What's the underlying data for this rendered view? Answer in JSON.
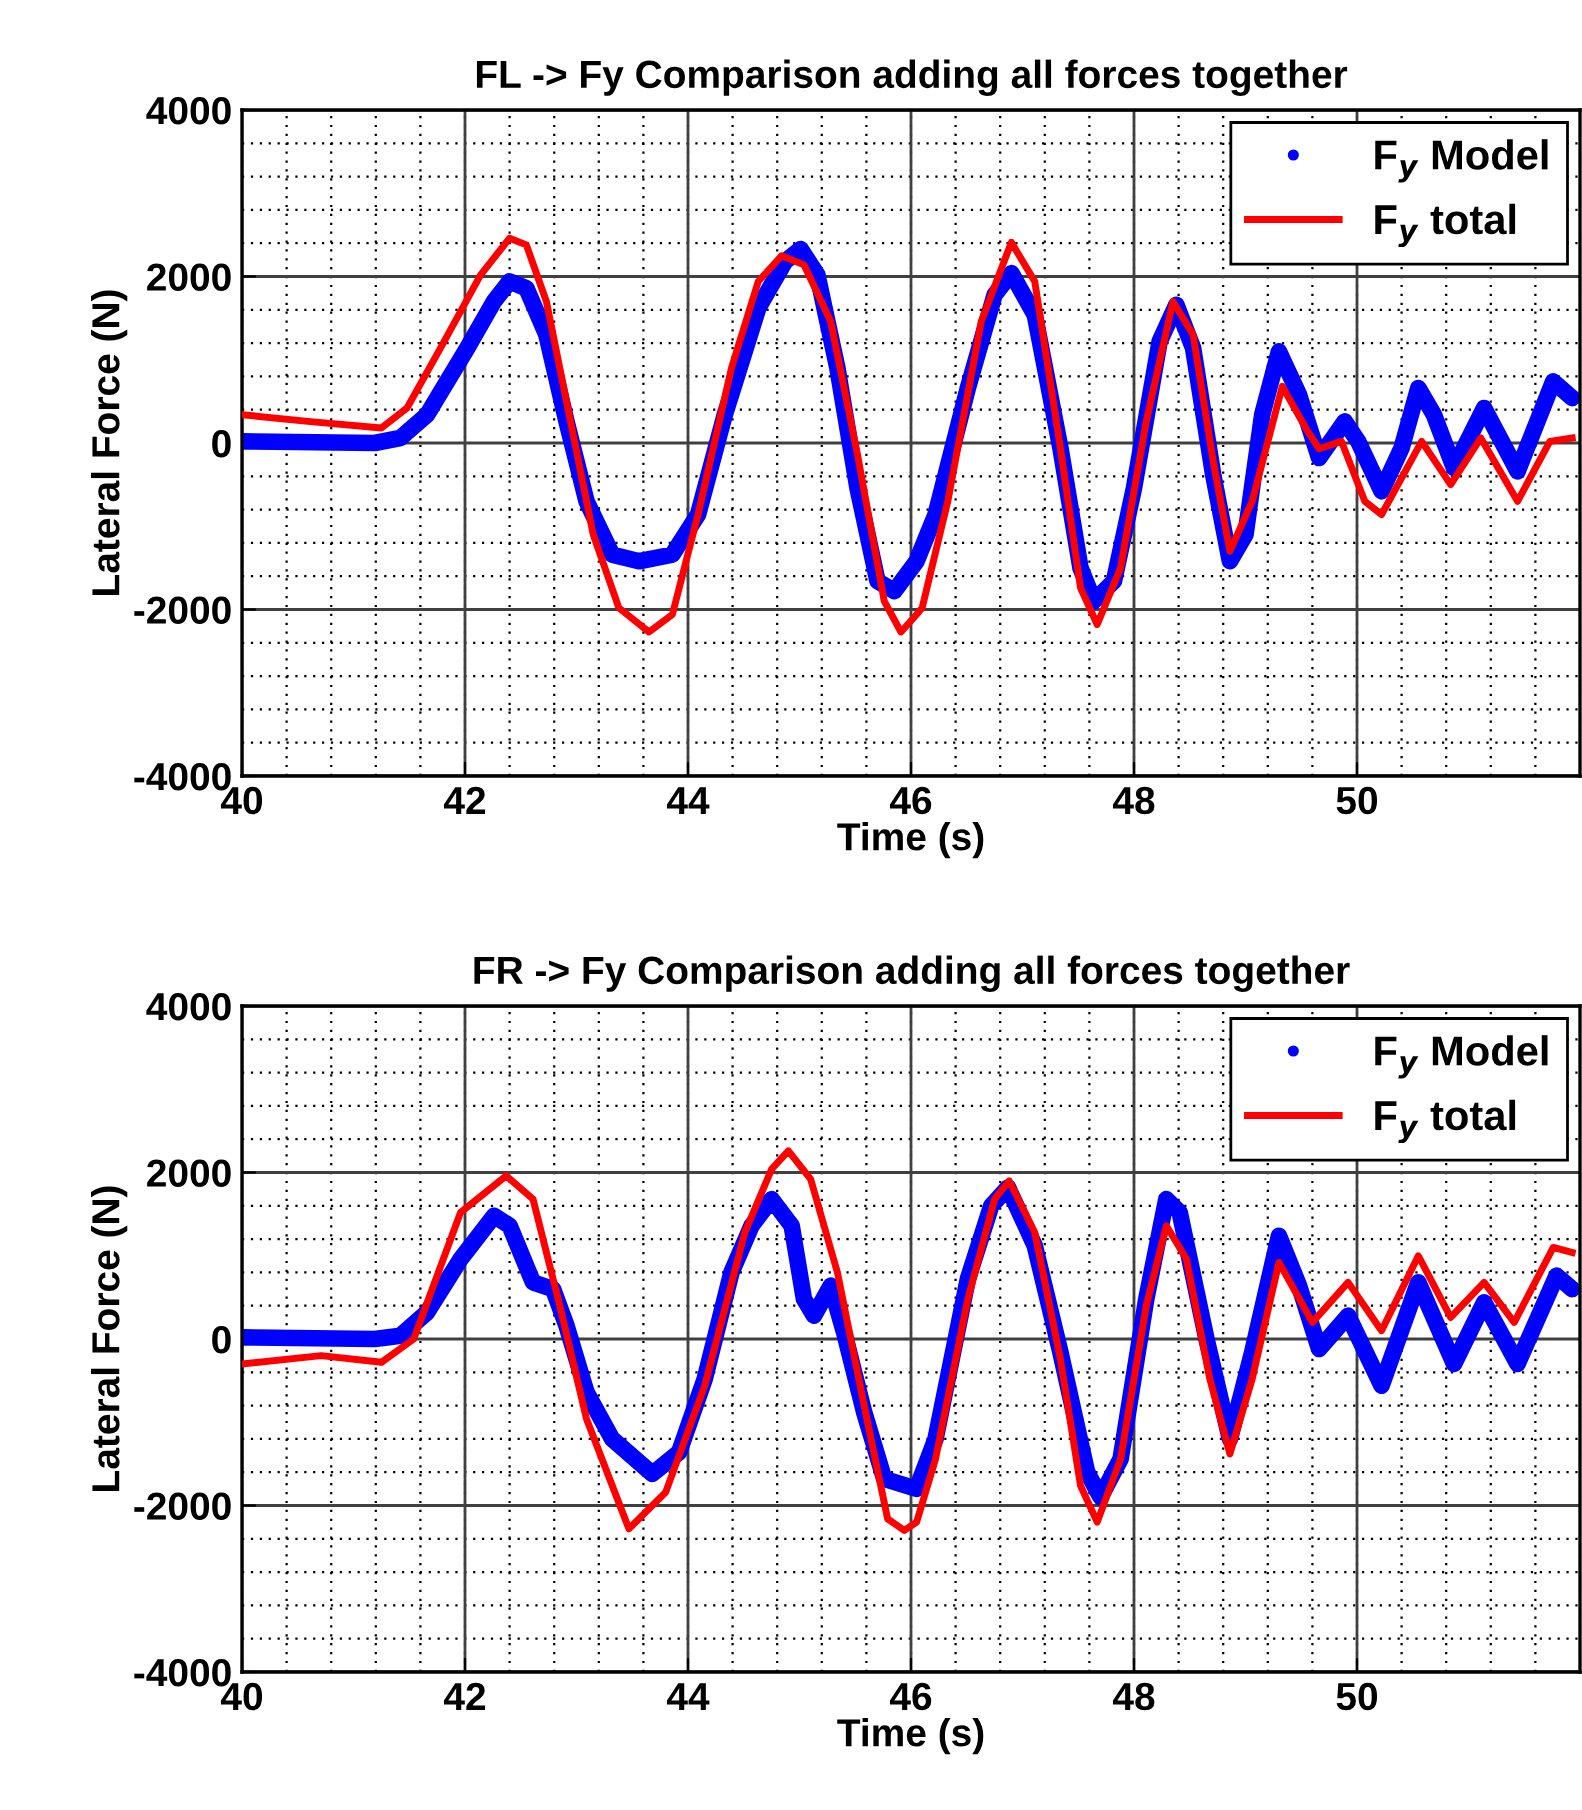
{
  "chart_data": [
    {
      "type": "line",
      "title": "FL -> Fy Comparison adding all forces together",
      "xlabel": "Time (s)",
      "ylabel": "Lateral Force (N)",
      "xlim": [
        40,
        52
      ],
      "xticks": [
        40,
        42,
        44,
        46,
        48,
        50
      ],
      "ylim": [
        -4000,
        4000
      ],
      "yticks": [
        -4000,
        -2000,
        0,
        2000,
        4000
      ],
      "grid": true,
      "legend": "top right",
      "series": [
        {
          "name": "F$_{y}$ Model",
          "color": "#0000ff",
          "marker": "circle",
          "x": [
            40,
            41.19,
            41.42,
            41.66,
            42.02,
            42.26,
            42.4,
            42.55,
            42.73,
            42.91,
            43.09,
            43.32,
            43.56,
            43.86,
            44.09,
            44.33,
            44.63,
            44.87,
            45.01,
            45.16,
            45.34,
            45.52,
            45.7,
            45.85,
            46.05,
            46.22,
            46.51,
            46.75,
            46.9,
            47.11,
            47.34,
            47.52,
            47.64,
            47.82,
            48.0,
            48.23,
            48.38,
            48.53,
            48.71,
            48.86,
            49.0,
            49.15,
            49.3,
            49.48,
            49.66,
            49.89,
            50.01,
            50.22,
            50.4,
            50.55,
            50.69,
            50.87,
            51.14,
            51.44,
            51.76,
            51.93
          ],
          "values": [
            20,
            0,
            60,
            340,
            1140,
            1700,
            1940,
            1860,
            1300,
            260,
            -700,
            -1340,
            -1420,
            -1340,
            -860,
            340,
            1620,
            2180,
            2330,
            2020,
            900,
            -540,
            -1660,
            -1780,
            -1420,
            -860,
            660,
            1780,
            2040,
            1540,
            -60,
            -1500,
            -1900,
            -1660,
            -540,
            1220,
            1660,
            1140,
            -380,
            -1420,
            -1100,
            340,
            1100,
            580,
            -180,
            260,
            20,
            -580,
            -60,
            660,
            340,
            -300,
            420,
            -340,
            740,
            540
          ]
        },
        {
          "name": "F$_{y}$ total",
          "color": "#ff0000",
          "x": [
            40,
            40.59,
            41.25,
            41.48,
            41.78,
            42.14,
            42.4,
            42.55,
            42.73,
            42.97,
            43.15,
            43.38,
            43.65,
            43.86,
            44.09,
            44.39,
            44.63,
            44.84,
            45.04,
            45.28,
            45.52,
            45.76,
            45.91,
            46.05,
            46.1,
            46.33,
            46.63,
            46.9,
            47.11,
            47.34,
            47.52,
            47.67,
            47.88,
            48.11,
            48.35,
            48.53,
            48.71,
            48.86,
            49.06,
            49.33,
            49.54,
            49.66,
            49.86,
            50.07,
            50.22,
            50.58,
            50.84,
            51.11,
            51.44,
            51.73,
            51.93
          ],
          "values": [
            340,
            260,
            180,
            420,
            1140,
            2020,
            2460,
            2380,
            1700,
            100,
            -1100,
            -1980,
            -2270,
            -2060,
            -860,
            900,
            1940,
            2250,
            2140,
            1460,
            -140,
            -1900,
            -2270,
            -2060,
            -1980,
            -700,
            1460,
            2410,
            1940,
            -60,
            -1740,
            -2180,
            -1500,
            260,
            1700,
            1300,
            -220,
            -1300,
            -700,
            680,
            180,
            -70,
            20,
            -700,
            -860,
            20,
            -500,
            60,
            -700,
            20,
            60
          ]
        }
      ]
    },
    {
      "type": "line",
      "title": "FR -> Fy Comparison adding all forces together",
      "xlabel": "Time (s)",
      "ylabel": "Lateral Force (N)",
      "xlim": [
        40,
        52
      ],
      "xticks": [
        40,
        42,
        44,
        46,
        48,
        50
      ],
      "ylim": [
        -4000,
        4000
      ],
      "yticks": [
        -4000,
        -2000,
        0,
        2000,
        4000
      ],
      "grid": true,
      "legend": "top right",
      "series": [
        {
          "name": "F$_{y}$ Model",
          "color": "#0000ff",
          "marker": "circle",
          "x": [
            40,
            41.19,
            41.42,
            41.66,
            41.96,
            42.26,
            42.4,
            42.61,
            42.79,
            42.91,
            43.09,
            43.32,
            43.68,
            43.92,
            44.15,
            44.39,
            44.57,
            44.75,
            44.93,
            45.04,
            45.13,
            45.28,
            45.4,
            45.58,
            45.76,
            46.05,
            46.22,
            46.51,
            46.72,
            46.87,
            47.11,
            47.34,
            47.58,
            47.7,
            47.88,
            48.11,
            48.29,
            48.41,
            48.65,
            48.86,
            49.06,
            49.3,
            49.48,
            49.66,
            49.92,
            50.22,
            50.55,
            50.87,
            51.14,
            51.44,
            51.79,
            51.93
          ],
          "values": [
            20,
            0,
            40,
            320,
            960,
            1480,
            1360,
            680,
            600,
            160,
            -640,
            -1200,
            -1620,
            -1360,
            -480,
            800,
            1360,
            1680,
            1360,
            480,
            280,
            640,
            80,
            -880,
            -1680,
            -1800,
            -1200,
            720,
            1600,
            1820,
            1120,
            -160,
            -1600,
            -1900,
            -1440,
            480,
            1680,
            1520,
            0,
            -1200,
            -160,
            1240,
            640,
            -120,
            280,
            -560,
            680,
            -300,
            440,
            -300,
            760,
            600
          ]
        },
        {
          "name": "F$_{y}$ total",
          "color": "#ff0000",
          "x": [
            40,
            40.71,
            41.25,
            41.54,
            41.96,
            42.37,
            42.61,
            42.85,
            43.09,
            43.47,
            43.8,
            44.15,
            44.51,
            44.75,
            44.9,
            45.1,
            45.34,
            45.58,
            45.79,
            45.94,
            46.05,
            46.22,
            46.51,
            46.75,
            46.88,
            47.11,
            47.34,
            47.52,
            47.67,
            47.88,
            48.11,
            48.29,
            48.47,
            48.68,
            48.86,
            49.06,
            49.3,
            49.6,
            49.92,
            50.22,
            50.55,
            50.84,
            51.14,
            51.41,
            51.76,
            51.93
          ],
          "values": [
            -300,
            -200,
            -280,
            0,
            1520,
            1960,
            1680,
            400,
            -960,
            -2280,
            -1840,
            -560,
            1280,
            2040,
            2260,
            1920,
            800,
            -800,
            -2160,
            -2300,
            -2200,
            -1440,
            480,
            1680,
            1900,
            1280,
            -240,
            -1760,
            -2200,
            -1440,
            400,
            1360,
            960,
            -480,
            -1380,
            -480,
            920,
            200,
            680,
            100,
            1000,
            260,
            680,
            200,
            1100,
            1040
          ]
        }
      ]
    }
  ]
}
